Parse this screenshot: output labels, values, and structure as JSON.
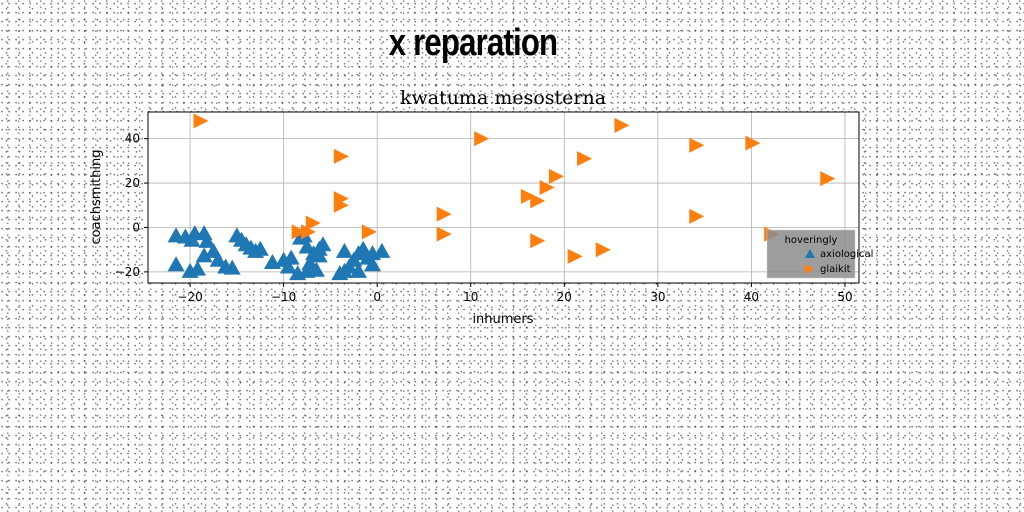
{
  "page_title": "x reparation",
  "colors": {
    "series1": "#1f77b4",
    "series2": "#ff7f0e",
    "grid": "#b0b0b0",
    "legend_bg": "#8c8c8c"
  },
  "chart_data": {
    "type": "scatter",
    "title": "kwatuma mesosterna",
    "xlabel": "inhumers",
    "ylabel": "coachsmithing",
    "xlim": [
      -24.5,
      51.5
    ],
    "ylim": [
      -25,
      52
    ],
    "xticks": [
      -20,
      -10,
      0,
      10,
      20,
      30,
      40,
      50
    ],
    "xtick_labels": [
      "−20",
      "−10",
      "0",
      "10",
      "20",
      "30",
      "40",
      "50"
    ],
    "yticks": [
      -20,
      0,
      20,
      40
    ],
    "ytick_labels": [
      "−20",
      "0",
      "20",
      "40"
    ],
    "grid": true,
    "legend": {
      "title": "hoveringly",
      "position": "lower-right"
    },
    "series": [
      {
        "name": "axiological",
        "marker": "triangle-up",
        "color": "#1f77b4",
        "points": [
          [
            -21.5,
            -4
          ],
          [
            -20.5,
            -4.5
          ],
          [
            -19.5,
            -3
          ],
          [
            -18.5,
            -3
          ],
          [
            -19.8,
            -6
          ],
          [
            -18.2,
            -6.5
          ],
          [
            -21.5,
            -17
          ],
          [
            -20,
            -20
          ],
          [
            -19.2,
            -19
          ],
          [
            -18.5,
            -13
          ],
          [
            -17.5,
            -11
          ],
          [
            -17,
            -15
          ],
          [
            -16.2,
            -18
          ],
          [
            -15.5,
            -18.5
          ],
          [
            -15,
            -4
          ],
          [
            -14.5,
            -6
          ],
          [
            -14,
            -8
          ],
          [
            -13.5,
            -9.5
          ],
          [
            -12.5,
            -10
          ],
          [
            -13,
            -11
          ],
          [
            -11.2,
            -16
          ],
          [
            -10,
            -15
          ],
          [
            -9.2,
            -14
          ],
          [
            -8.2,
            -5
          ],
          [
            -7.8,
            -4
          ],
          [
            -7.5,
            -9
          ],
          [
            -6.8,
            -12
          ],
          [
            -6.2,
            -10
          ],
          [
            -5.8,
            -8
          ],
          [
            -9.5,
            -18
          ],
          [
            -8.5,
            -21
          ],
          [
            -7.5,
            -20
          ],
          [
            -6.5,
            -19.5
          ],
          [
            -7.2,
            -16.5
          ],
          [
            -6.2,
            -13
          ],
          [
            -4,
            -21
          ],
          [
            -3.5,
            -20
          ],
          [
            -3,
            -18
          ],
          [
            -2.5,
            -15
          ],
          [
            -2,
            -12
          ],
          [
            -1.5,
            -10
          ],
          [
            -1,
            -14
          ],
          [
            -0.5,
            -12
          ],
          [
            -0.5,
            -17
          ],
          [
            0.5,
            -11
          ],
          [
            -3.5,
            -11
          ],
          [
            -2,
            -20
          ]
        ]
      },
      {
        "name": "glaikit",
        "marker": "triangle-right",
        "color": "#ff7f0e",
        "points": [
          [
            -19,
            48
          ],
          [
            -4,
            32
          ],
          [
            -4,
            13
          ],
          [
            -4,
            10
          ],
          [
            -7,
            2
          ],
          [
            -7.5,
            -2
          ],
          [
            -8.5,
            -2
          ],
          [
            -1,
            -2
          ],
          [
            7,
            6
          ],
          [
            7,
            -3
          ],
          [
            11,
            40
          ],
          [
            16,
            14
          ],
          [
            17,
            12
          ],
          [
            17,
            -6
          ],
          [
            18,
            18
          ],
          [
            19,
            23
          ],
          [
            22,
            31
          ],
          [
            21,
            -13
          ],
          [
            24,
            -10
          ],
          [
            26,
            46
          ],
          [
            34,
            37
          ],
          [
            34,
            5
          ],
          [
            40,
            38
          ],
          [
            48,
            22
          ],
          [
            42,
            -3
          ]
        ]
      }
    ]
  }
}
